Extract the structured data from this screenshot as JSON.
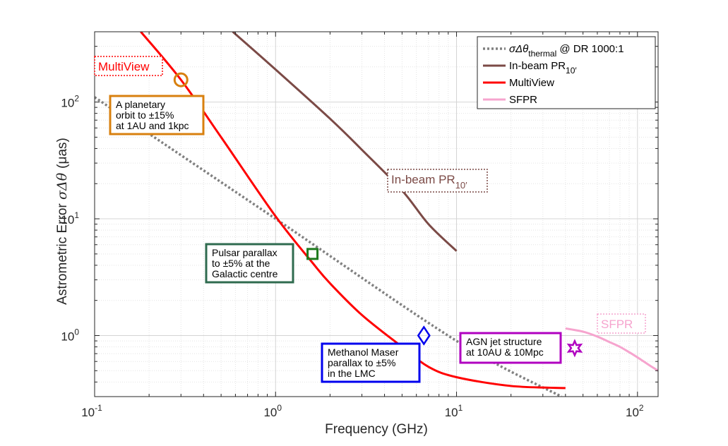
{
  "chart_data": {
    "type": "line",
    "xscale": "log",
    "yscale": "log",
    "xlim": [
      0.1,
      130
    ],
    "ylim": [
      0.3,
      400
    ],
    "xlabel": "Frequency (GHz)",
    "ylabel_text": "Astrometric Error",
    "ylabel_symbol": "σΔθ",
    "ylabel_unit": "(μas)",
    "grid": true,
    "minor_grid": true,
    "legend_position": "top-right",
    "x_ticks": [
      {
        "value": 0.1,
        "mantissa": "10",
        "exponent": "-1"
      },
      {
        "value": 1,
        "mantissa": "10",
        "exponent": "0"
      },
      {
        "value": 10,
        "mantissa": "10",
        "exponent": "1"
      },
      {
        "value": 100,
        "mantissa": "10",
        "exponent": "2"
      }
    ],
    "y_ticks": [
      {
        "value": 1,
        "mantissa": "10",
        "exponent": "0"
      },
      {
        "value": 10,
        "mantissa": "10",
        "exponent": "1"
      },
      {
        "value": 100,
        "mantissa": "10",
        "exponent": "2"
      }
    ],
    "series": [
      {
        "name": "σΔθ",
        "name_sub": "thermal",
        "name_suffix": "@ DR 1000:1",
        "color": "#808080",
        "style": "dotted",
        "x": [
          0.1,
          1,
          10,
          38
        ],
        "y": [
          110,
          10,
          0.9,
          0.3
        ]
      },
      {
        "name": "In-beam PR",
        "name_sub": "10′",
        "color": "#7b4a46",
        "style": "solid",
        "x": [
          0.58,
          1,
          2,
          3,
          5,
          7,
          10
        ],
        "y": [
          400,
          190,
          72,
          39,
          17.5,
          9,
          5.3
        ]
      },
      {
        "name": "MultiView",
        "color": "#ff0000",
        "style": "solid",
        "x": [
          0.18,
          0.3,
          0.5,
          1,
          1.6,
          2,
          3,
          5,
          7,
          10,
          20,
          40
        ],
        "y": [
          400,
          155,
          50,
          10.5,
          4.2,
          2.8,
          1.5,
          0.8,
          0.54,
          0.44,
          0.37,
          0.355
        ]
      },
      {
        "name": "SFPR",
        "color": "#f6a4ce",
        "style": "solid",
        "x": [
          40,
          50,
          60,
          70,
          80,
          90,
          100,
          110,
          120,
          130
        ],
        "y": [
          1.15,
          1.08,
          0.98,
          0.88,
          0.8,
          0.72,
          0.65,
          0.59,
          0.54,
          0.5
        ]
      }
    ],
    "markers": [
      {
        "shape": "circle",
        "x": 0.3,
        "y": 155,
        "color": "#d8800f"
      },
      {
        "shape": "square",
        "x": 1.6,
        "y": 5.0,
        "color": "#1e7a1e"
      },
      {
        "shape": "diamond",
        "x": 6.6,
        "y": 1.0,
        "color": "#0000ee"
      },
      {
        "shape": "star",
        "x": 45,
        "y": 0.78,
        "color": "#b000c0"
      }
    ],
    "annotations": [
      {
        "lines": [
          "A planetary",
          "orbit to ±15%",
          "at 1AU and 1kpc"
        ],
        "color": "#d8800f"
      },
      {
        "lines": [
          "Pulsar parallax",
          "to ±5% at the",
          "Galactic centre"
        ],
        "color": "#2f6b4f"
      },
      {
        "lines": [
          "Methanol Maser",
          "parallax to ±5%",
          "in the LMC"
        ],
        "color": "#0000ee"
      },
      {
        "lines": [
          "AGN jet structure",
          "at 10AU & 10Mpc"
        ],
        "color": "#b000c0"
      }
    ],
    "curve_labels": [
      {
        "text": "MultiView",
        "color": "#ff0000"
      },
      {
        "text": "In-beam PR",
        "sub": "10′",
        "color": "#7b4a46"
      },
      {
        "text": "SFPR",
        "color": "#f6a4ce"
      }
    ]
  }
}
